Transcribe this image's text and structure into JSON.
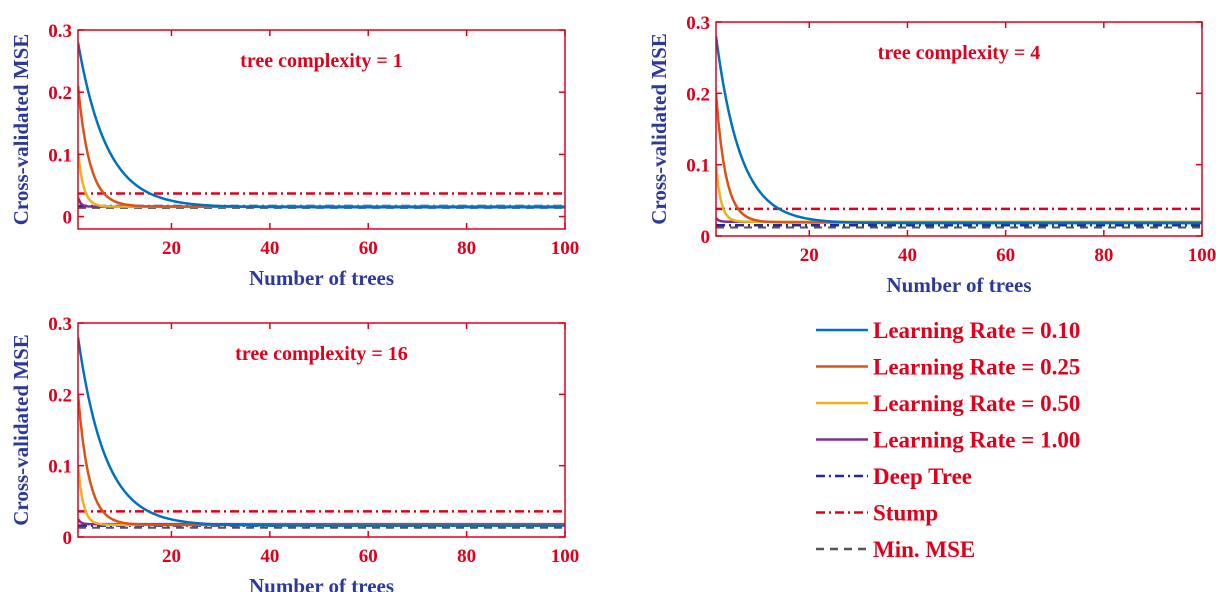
{
  "chart_data": [
    {
      "type": "line",
      "title": "tree complexity = 1",
      "xlabel": "Number of trees",
      "ylabel": "Cross-validated MSE",
      "xlim": [
        1,
        100
      ],
      "ylim": [
        -0.02,
        0.3
      ],
      "xticks": [
        20,
        40,
        60,
        80,
        100
      ],
      "yticks": [
        0,
        0.1,
        0.2,
        0.3
      ],
      "curves": [
        {
          "name": "Learning Rate = 0.10",
          "color": "#0072bd",
          "start": 0.28,
          "floor": 0.015,
          "decay": 0.17
        },
        {
          "name": "Learning Rate = 0.25",
          "color": "#d95319",
          "start": 0.21,
          "floor": 0.016,
          "decay": 0.42
        },
        {
          "name": "Learning Rate = 0.50",
          "color": "#edb120",
          "start": 0.105,
          "floor": 0.016,
          "decay": 0.9
        },
        {
          "name": "Learning Rate = 1.00",
          "color": "#7e2f8e",
          "start": 0.03,
          "floor": 0.016,
          "decay": 1.8
        }
      ],
      "deep_tree": 0.017,
      "stump": 0.037,
      "min_mse": 0.014
    },
    {
      "type": "line",
      "title": "tree complexity = 4",
      "xlabel": "Number of trees",
      "ylabel": "Cross-validated MSE",
      "xlim": [
        1,
        100
      ],
      "ylim": [
        0,
        0.3
      ],
      "xticks": [
        20,
        40,
        60,
        80,
        100
      ],
      "yticks": [
        0,
        0.1,
        0.2,
        0.3
      ],
      "curves": [
        {
          "name": "Learning Rate = 0.10",
          "color": "#0072bd",
          "start": 0.28,
          "floor": 0.018,
          "decay": 0.2
        },
        {
          "name": "Learning Rate = 0.25",
          "color": "#d95319",
          "start": 0.2,
          "floor": 0.019,
          "decay": 0.5
        },
        {
          "name": "Learning Rate = 0.50",
          "color": "#edb120",
          "start": 0.1,
          "floor": 0.02,
          "decay": 1.0
        },
        {
          "name": "Learning Rate = 1.00",
          "color": "#7e2f8e",
          "start": 0.025,
          "floor": 0.02,
          "decay": 1.8
        }
      ],
      "deep_tree": 0.015,
      "stump": 0.038,
      "min_mse": 0.012
    },
    {
      "type": "line",
      "title": "tree complexity = 16",
      "xlabel": "Number of trees",
      "ylabel": "Cross-validated MSE",
      "xlim": [
        1,
        100
      ],
      "ylim": [
        0,
        0.3
      ],
      "xticks": [
        20,
        40,
        60,
        80,
        100
      ],
      "yticks": [
        0,
        0.1,
        0.2,
        0.3
      ],
      "curves": [
        {
          "name": "Learning Rate = 0.10",
          "color": "#0072bd",
          "start": 0.28,
          "floor": 0.016,
          "decay": 0.18
        },
        {
          "name": "Learning Rate = 0.25",
          "color": "#d95319",
          "start": 0.2,
          "floor": 0.017,
          "decay": 0.45
        },
        {
          "name": "Learning Rate = 0.50",
          "color": "#edb120",
          "start": 0.1,
          "floor": 0.017,
          "decay": 0.95
        },
        {
          "name": "Learning Rate = 1.00",
          "color": "#7e2f8e",
          "start": 0.025,
          "floor": 0.018,
          "decay": 1.8
        }
      ],
      "deep_tree": 0.016,
      "stump": 0.036,
      "min_mse": 0.013
    }
  ],
  "legend": {
    "items": [
      {
        "label": "Learning Rate = 0.10",
        "color": "#0072bd",
        "style": "solid"
      },
      {
        "label": "Learning Rate = 0.25",
        "color": "#d95319",
        "style": "solid"
      },
      {
        "label": "Learning Rate = 0.50",
        "color": "#edb120",
        "style": "solid"
      },
      {
        "label": "Learning Rate = 1.00",
        "color": "#7e2f8e",
        "style": "solid"
      },
      {
        "label": "Deep Tree",
        "color": "#1f2a9e",
        "style": "dashdot"
      },
      {
        "label": "Stump",
        "color": "#e0001b",
        "style": "dashdot"
      },
      {
        "label": "Min. MSE",
        "color": "#555555",
        "style": "dashed"
      }
    ]
  },
  "colors": {
    "axis": "#e0001b",
    "axis_label": "#2b3a9a",
    "deep_tree": "#1f2a9e",
    "stump": "#e0001b",
    "min_mse": "#555555"
  }
}
